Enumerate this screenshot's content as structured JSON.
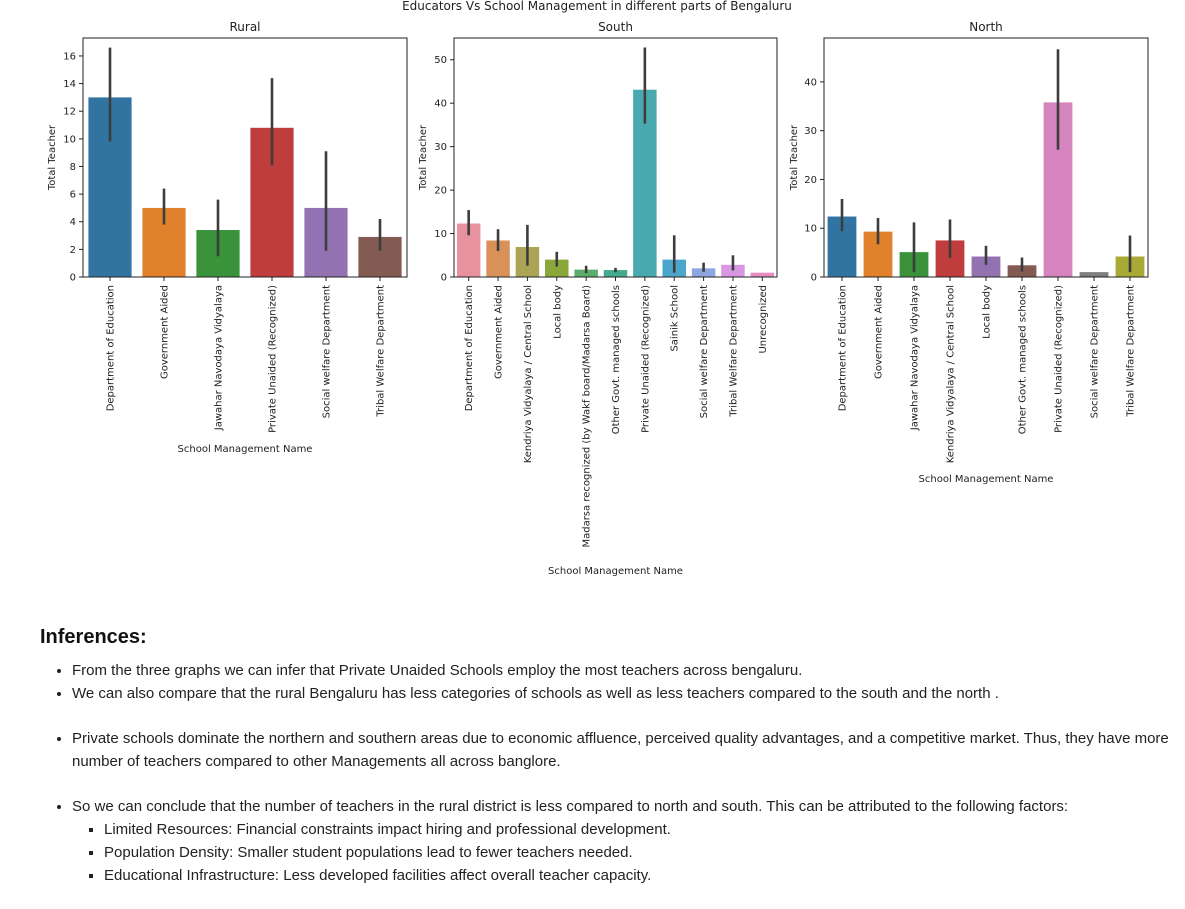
{
  "figure": {
    "suptitle": "Educators Vs School Management in different parts of Bengaluru"
  },
  "chart_data": [
    {
      "type": "bar",
      "title": "Rural",
      "xlabel": "School Management Name",
      "ylabel": "Total Teacher",
      "ylim": [
        0,
        17.3
      ],
      "yticks": [
        0,
        2,
        4,
        6,
        8,
        10,
        12,
        14,
        16
      ],
      "categories": [
        "Department of Education",
        "Government Aided",
        "Jawahar Navodaya Vidyalaya",
        "Private Unaided (Recognized)",
        "Social welfare Department",
        "Tribal Welfare Department"
      ],
      "values": [
        13.0,
        5.0,
        3.4,
        10.8,
        5.0,
        2.9
      ],
      "error_low": [
        9.8,
        3.8,
        1.5,
        8.1,
        1.9,
        1.9
      ],
      "error_high": [
        16.6,
        6.4,
        5.6,
        14.4,
        9.1,
        4.2
      ],
      "colors": [
        "#3274a1",
        "#e1812c",
        "#3a923a",
        "#c03d3e",
        "#9372b2",
        "#845b53"
      ]
    },
    {
      "type": "bar",
      "title": "South",
      "xlabel": "School Management Name",
      "ylabel": "Total Teacher",
      "ylim": [
        0,
        55
      ],
      "yticks": [
        0,
        10,
        20,
        30,
        40,
        50
      ],
      "categories": [
        "Department of Education",
        "Government Aided",
        "Kendriya Vidyalaya / Central School",
        "Local body",
        "Madarsa recognized (by Wakf board/Madarsa Board)",
        "Other Govt. managed schools",
        "Private Unaided (Recognized)",
        "Sainik School",
        "Social welfare Department",
        "Tribal Welfare Department",
        "Unrecognized"
      ],
      "values": [
        12.3,
        8.4,
        6.9,
        4.0,
        1.7,
        1.6,
        43.1,
        4.0,
        2.0,
        2.8,
        1.0
      ],
      "error_low": [
        9.6,
        6.0,
        2.6,
        2.4,
        0.9,
        1.1,
        35.3,
        1.0,
        1.2,
        1.5,
        1.0
      ],
      "error_high": [
        15.4,
        11.0,
        12.0,
        5.8,
        2.6,
        2.1,
        52.8,
        9.6,
        3.3,
        5.0,
        1.0
      ],
      "colors": [
        "#e8919f",
        "#d9915a",
        "#aba454",
        "#8aa73a",
        "#5bad6d",
        "#45ab8f",
        "#48a9ae",
        "#4aa6cb",
        "#8fa6e0",
        "#d897e0",
        "#e88ec2"
      ]
    },
    {
      "type": "bar",
      "title": "North",
      "xlabel": "School Management Name",
      "ylabel": "Total Teacher",
      "ylim": [
        0,
        49
      ],
      "yticks": [
        0,
        10,
        20,
        30,
        40
      ],
      "categories": [
        "Department of Education",
        "Government Aided",
        "Jawahar Navodaya Vidyalaya",
        "Kendriya Vidyalaya / Central School",
        "Local body",
        "Other Govt. managed schools",
        "Private Unaided (Recognized)",
        "Social welfare Department",
        "Tribal Welfare Department"
      ],
      "values": [
        12.4,
        9.3,
        5.1,
        7.5,
        4.2,
        2.4,
        35.8,
        1.0,
        4.2
      ],
      "error_low": [
        9.4,
        6.7,
        1.0,
        3.9,
        2.5,
        1.1,
        26.1,
        1.0,
        1.0
      ],
      "error_high": [
        16.0,
        12.1,
        11.2,
        11.8,
        6.4,
        4.0,
        46.7,
        1.0,
        8.5
      ],
      "colors": [
        "#3274a1",
        "#e1812c",
        "#3a923a",
        "#c03d3e",
        "#9372b2",
        "#845b53",
        "#d684bd",
        "#7f7f7f",
        "#a9aa35"
      ]
    }
  ],
  "inferences": {
    "heading": "Inferences:",
    "points": [
      "From the three graphs we can infer that Private Unaided Schools employ the most teachers across bengaluru.",
      "We can also compare that the rural Bengaluru has less categories of schools as well as less teachers compared to the south and the north .",
      "Private schools dominate the northern and southern areas due to economic affluence, perceived quality advantages, and a competitive market. Thus, they have more number of teachers compared to other Managements all across banglore.",
      "So we can conclude that the number of teachers in the rural district is less compared to north and south. This can be attributed to the following factors:"
    ],
    "factors": [
      "Limited Resources: Financial constraints impact hiring and professional development.",
      "Population Density: Smaller student populations lead to fewer teachers needed.",
      "Educational Infrastructure: Less developed facilities affect overall teacher capacity."
    ]
  }
}
